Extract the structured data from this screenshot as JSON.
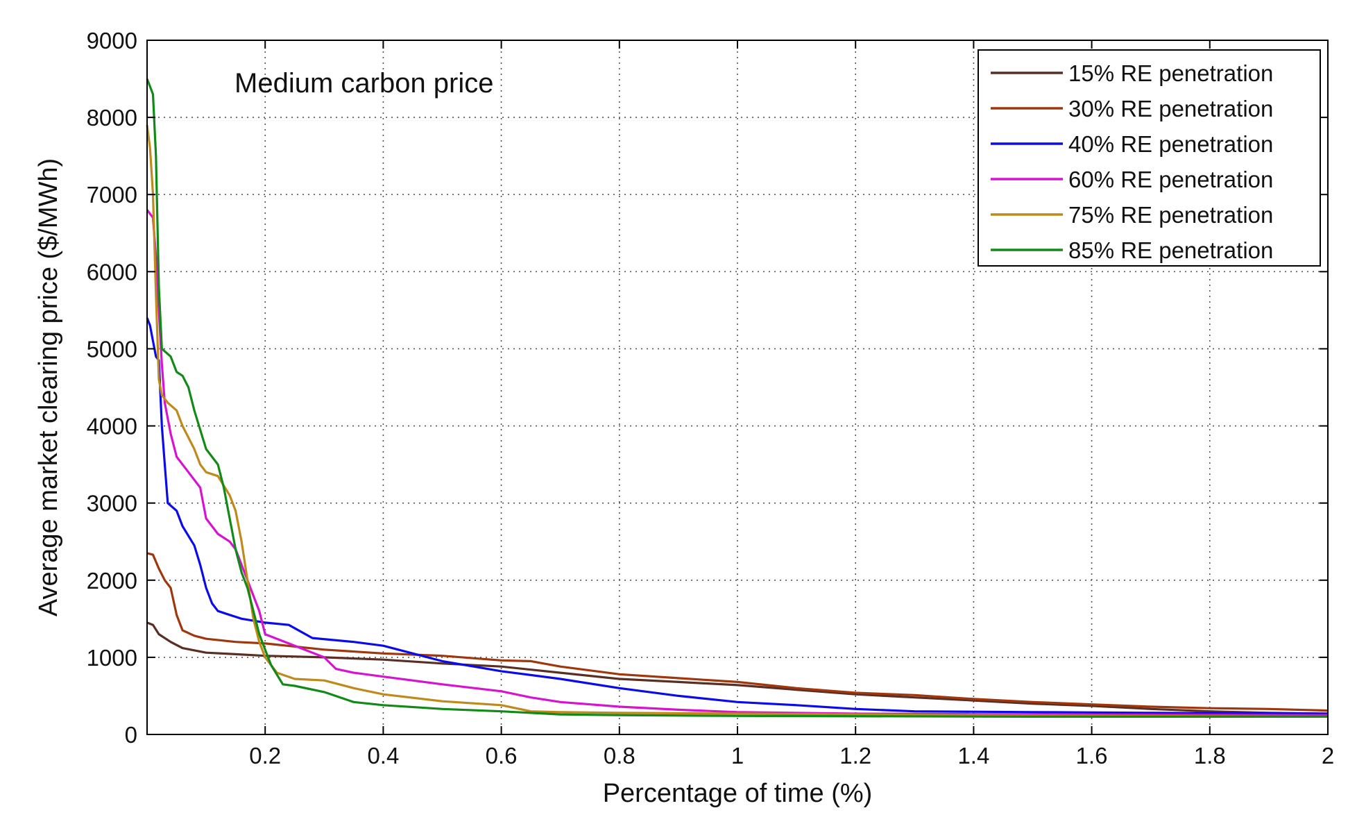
{
  "chart_data": {
    "type": "line",
    "title": "",
    "annotation": "Medium carbon price",
    "xlabel": "Percentage of time (%)",
    "ylabel": "Average market clearing price ($/MWh)",
    "xlim": [
      0,
      2
    ],
    "ylim": [
      0,
      9000
    ],
    "xticks": [
      0.2,
      0.4,
      0.6,
      0.8,
      1,
      1.2,
      1.4,
      1.6,
      1.8,
      2
    ],
    "xtick_labels": [
      "0.2",
      "0.4",
      "0.6",
      "0.8",
      "1",
      "1.2",
      "1.4",
      "1.6",
      "1.8",
      "2"
    ],
    "yticks": [
      0,
      1000,
      2000,
      3000,
      4000,
      5000,
      6000,
      7000,
      8000,
      9000
    ],
    "ytick_labels": [
      "0",
      "1000",
      "2000",
      "3000",
      "4000",
      "5000",
      "6000",
      "7000",
      "8000",
      "9000"
    ],
    "grid": true,
    "legend_position": "top-right",
    "series": [
      {
        "name": "15% RE penetration",
        "color": "#5a2e22",
        "points": [
          [
            0,
            1450
          ],
          [
            0.01,
            1420
          ],
          [
            0.02,
            1300
          ],
          [
            0.04,
            1200
          ],
          [
            0.06,
            1120
          ],
          [
            0.1,
            1060
          ],
          [
            0.15,
            1040
          ],
          [
            0.2,
            1020
          ],
          [
            0.3,
            1000
          ],
          [
            0.4,
            970
          ],
          [
            0.5,
            920
          ],
          [
            0.6,
            880
          ],
          [
            0.7,
            800
          ],
          [
            0.8,
            720
          ],
          [
            0.9,
            680
          ],
          [
            1.0,
            640
          ],
          [
            1.1,
            580
          ],
          [
            1.2,
            520
          ],
          [
            1.3,
            480
          ],
          [
            1.4,
            440
          ],
          [
            1.5,
            400
          ],
          [
            1.6,
            370
          ],
          [
            1.7,
            330
          ],
          [
            1.8,
            300
          ],
          [
            1.9,
            280
          ],
          [
            2.0,
            270
          ]
        ]
      },
      {
        "name": "30% RE penetration",
        "color": "#a0360c",
        "points": [
          [
            0,
            2350
          ],
          [
            0.01,
            2330
          ],
          [
            0.02,
            2150
          ],
          [
            0.03,
            2000
          ],
          [
            0.04,
            1900
          ],
          [
            0.05,
            1550
          ],
          [
            0.06,
            1350
          ],
          [
            0.08,
            1280
          ],
          [
            0.1,
            1240
          ],
          [
            0.15,
            1200
          ],
          [
            0.2,
            1180
          ],
          [
            0.3,
            1100
          ],
          [
            0.4,
            1050
          ],
          [
            0.5,
            1020
          ],
          [
            0.6,
            960
          ],
          [
            0.65,
            950
          ],
          [
            0.7,
            880
          ],
          [
            0.8,
            780
          ],
          [
            0.9,
            730
          ],
          [
            1.0,
            680
          ],
          [
            1.1,
            600
          ],
          [
            1.2,
            540
          ],
          [
            1.3,
            510
          ],
          [
            1.4,
            460
          ],
          [
            1.5,
            420
          ],
          [
            1.6,
            390
          ],
          [
            1.7,
            360
          ],
          [
            1.8,
            340
          ],
          [
            1.9,
            330
          ],
          [
            2.0,
            310
          ]
        ]
      },
      {
        "name": "40% RE penetration",
        "color": "#0a0aee",
        "points": [
          [
            0,
            5400
          ],
          [
            0.005,
            5300
          ],
          [
            0.01,
            5100
          ],
          [
            0.015,
            4900
          ],
          [
            0.02,
            4850
          ],
          [
            0.025,
            4000
          ],
          [
            0.03,
            3500
          ],
          [
            0.035,
            3000
          ],
          [
            0.05,
            2900
          ],
          [
            0.06,
            2700
          ],
          [
            0.08,
            2450
          ],
          [
            0.09,
            2200
          ],
          [
            0.1,
            1900
          ],
          [
            0.11,
            1700
          ],
          [
            0.12,
            1600
          ],
          [
            0.14,
            1550
          ],
          [
            0.16,
            1500
          ],
          [
            0.2,
            1450
          ],
          [
            0.24,
            1420
          ],
          [
            0.28,
            1250
          ],
          [
            0.35,
            1200
          ],
          [
            0.4,
            1150
          ],
          [
            0.45,
            1050
          ],
          [
            0.5,
            950
          ],
          [
            0.6,
            820
          ],
          [
            0.7,
            720
          ],
          [
            0.8,
            600
          ],
          [
            0.9,
            500
          ],
          [
            1.0,
            420
          ],
          [
            1.1,
            380
          ],
          [
            1.2,
            330
          ],
          [
            1.3,
            300
          ],
          [
            1.5,
            290
          ],
          [
            1.7,
            280
          ],
          [
            2.0,
            270
          ]
        ]
      },
      {
        "name": "60% RE penetration",
        "color": "#d713cf",
        "points": [
          [
            0,
            6800
          ],
          [
            0.01,
            6700
          ],
          [
            0.015,
            6200
          ],
          [
            0.02,
            5500
          ],
          [
            0.025,
            4800
          ],
          [
            0.03,
            4300
          ],
          [
            0.04,
            3900
          ],
          [
            0.05,
            3600
          ],
          [
            0.07,
            3400
          ],
          [
            0.09,
            3200
          ],
          [
            0.1,
            2800
          ],
          [
            0.12,
            2600
          ],
          [
            0.14,
            2500
          ],
          [
            0.15,
            2400
          ],
          [
            0.16,
            2200
          ],
          [
            0.17,
            2000
          ],
          [
            0.18,
            1800
          ],
          [
            0.19,
            1600
          ],
          [
            0.2,
            1300
          ],
          [
            0.25,
            1150
          ],
          [
            0.3,
            1000
          ],
          [
            0.32,
            850
          ],
          [
            0.35,
            800
          ],
          [
            0.4,
            750
          ],
          [
            0.5,
            650
          ],
          [
            0.6,
            560
          ],
          [
            0.65,
            480
          ],
          [
            0.7,
            420
          ],
          [
            0.8,
            360
          ],
          [
            0.9,
            320
          ],
          [
            1.0,
            290
          ],
          [
            1.2,
            270
          ],
          [
            1.5,
            260
          ],
          [
            2.0,
            250
          ]
        ]
      },
      {
        "name": "75% RE penetration",
        "color": "#bf8a19",
        "points": [
          [
            0,
            7900
          ],
          [
            0.005,
            7600
          ],
          [
            0.01,
            7000
          ],
          [
            0.015,
            5700
          ],
          [
            0.02,
            4600
          ],
          [
            0.025,
            4400
          ],
          [
            0.035,
            4300
          ],
          [
            0.05,
            4200
          ],
          [
            0.06,
            4000
          ],
          [
            0.08,
            3700
          ],
          [
            0.09,
            3500
          ],
          [
            0.1,
            3400
          ],
          [
            0.12,
            3350
          ],
          [
            0.14,
            3100
          ],
          [
            0.15,
            2900
          ],
          [
            0.16,
            2500
          ],
          [
            0.17,
            2000
          ],
          [
            0.18,
            1500
          ],
          [
            0.19,
            1200
          ],
          [
            0.2,
            1000
          ],
          [
            0.22,
            800
          ],
          [
            0.25,
            720
          ],
          [
            0.3,
            700
          ],
          [
            0.35,
            600
          ],
          [
            0.4,
            520
          ],
          [
            0.5,
            430
          ],
          [
            0.6,
            380
          ],
          [
            0.65,
            300
          ],
          [
            0.7,
            290
          ],
          [
            0.8,
            280
          ],
          [
            1.0,
            270
          ],
          [
            1.2,
            260
          ],
          [
            1.4,
            250
          ],
          [
            1.65,
            240
          ],
          [
            2.0,
            230
          ]
        ]
      },
      {
        "name": "85% RE penetration",
        "color": "#128a17",
        "points": [
          [
            0,
            8500
          ],
          [
            0.005,
            8400
          ],
          [
            0.01,
            8300
          ],
          [
            0.015,
            7500
          ],
          [
            0.02,
            5800
          ],
          [
            0.025,
            5000
          ],
          [
            0.04,
            4900
          ],
          [
            0.05,
            4700
          ],
          [
            0.06,
            4650
          ],
          [
            0.07,
            4500
          ],
          [
            0.08,
            4200
          ],
          [
            0.1,
            3700
          ],
          [
            0.12,
            3500
          ],
          [
            0.13,
            3200
          ],
          [
            0.14,
            2800
          ],
          [
            0.15,
            2400
          ],
          [
            0.16,
            2100
          ],
          [
            0.17,
            1900
          ],
          [
            0.18,
            1600
          ],
          [
            0.19,
            1300
          ],
          [
            0.2,
            1100
          ],
          [
            0.21,
            900
          ],
          [
            0.23,
            650
          ],
          [
            0.25,
            630
          ],
          [
            0.3,
            550
          ],
          [
            0.35,
            420
          ],
          [
            0.4,
            380
          ],
          [
            0.5,
            330
          ],
          [
            0.6,
            300
          ],
          [
            0.65,
            280
          ],
          [
            0.7,
            260
          ],
          [
            0.8,
            250
          ],
          [
            1.0,
            240
          ],
          [
            1.5,
            230
          ],
          [
            2.0,
            230
          ]
        ]
      }
    ]
  }
}
